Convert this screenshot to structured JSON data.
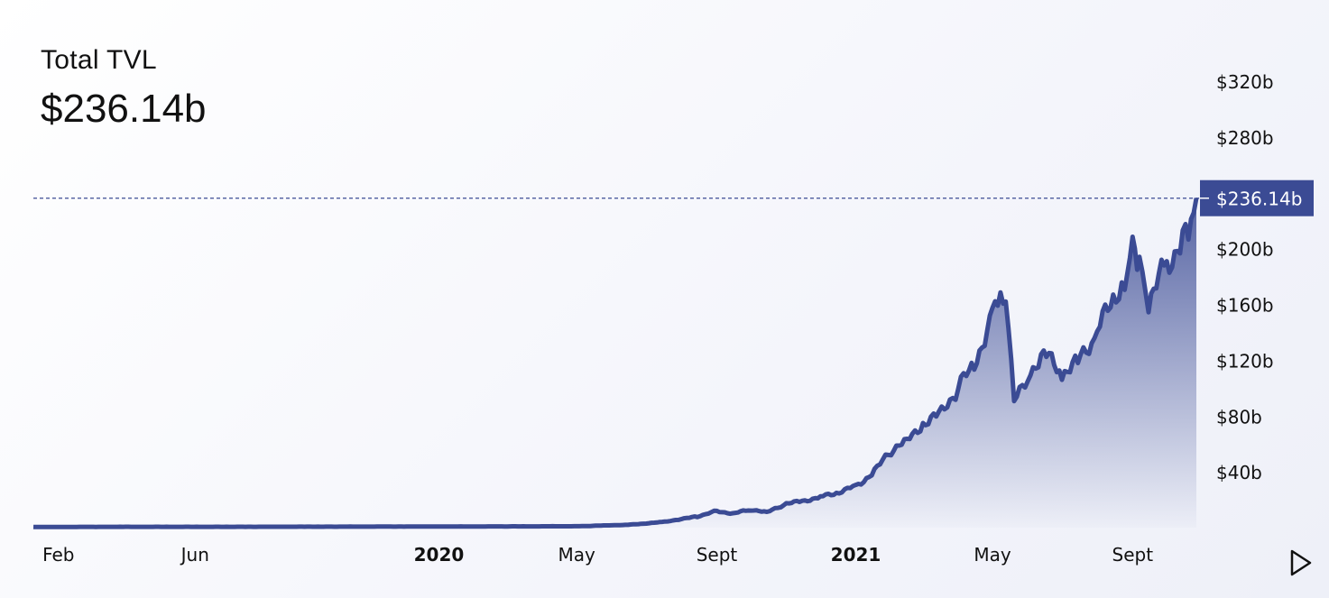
{
  "header": {
    "title": "Total TVL",
    "value": "$236.14b"
  },
  "chart_data": {
    "type": "area",
    "title": "Total TVL",
    "ylabel": "",
    "xlabel": "",
    "y_unit": "billion USD",
    "ylim": [
      0,
      320
    ],
    "y_ticks": [
      "$320b",
      "$280b",
      "$236.14b",
      "$200b",
      "$160b",
      "$120b",
      "$80b",
      "$40b"
    ],
    "y_tick_values": [
      320,
      280,
      200,
      160,
      120,
      80,
      40
    ],
    "x_ticks": [
      {
        "label": "Feb",
        "date": "2019-02-01",
        "bold": false
      },
      {
        "label": "Jun",
        "date": "2019-06-01",
        "bold": false
      },
      {
        "label": "2020",
        "date": "2020-01-01",
        "bold": true
      },
      {
        "label": "May",
        "date": "2020-05-01",
        "bold": false
      },
      {
        "label": "Sept",
        "date": "2020-09-01",
        "bold": false
      },
      {
        "label": "2021",
        "date": "2021-01-01",
        "bold": true
      },
      {
        "label": "May",
        "date": "2021-05-01",
        "bold": false
      },
      {
        "label": "Sept",
        "date": "2021-09-01",
        "bold": false
      }
    ],
    "current_value": 236.14,
    "current_label": "$236.14b",
    "line_color": "#3b4b94",
    "x_dates": [
      "2019-01-10",
      "2019-04-01",
      "2019-07-01",
      "2019-10-01",
      "2020-01-01",
      "2020-03-01",
      "2020-05-01",
      "2020-06-15",
      "2020-07-15",
      "2020-08-15",
      "2020-09-01",
      "2020-09-15",
      "2020-10-01",
      "2020-10-15",
      "2020-11-01",
      "2020-11-15",
      "2020-12-01",
      "2020-12-15",
      "2021-01-01",
      "2021-01-15",
      "2021-02-01",
      "2021-02-15",
      "2021-03-01",
      "2021-03-15",
      "2021-04-01",
      "2021-04-15",
      "2021-05-01",
      "2021-05-08",
      "2021-05-15",
      "2021-05-20",
      "2021-06-01",
      "2021-06-15",
      "2021-07-01",
      "2021-07-15",
      "2021-08-01",
      "2021-08-15",
      "2021-08-25",
      "2021-09-01",
      "2021-09-07",
      "2021-09-15",
      "2021-10-01",
      "2021-10-15",
      "2021-10-20",
      "2021-10-27"
    ],
    "values": [
      0.5,
      0.6,
      0.6,
      0.7,
      0.8,
      0.9,
      1,
      2,
      4,
      8,
      12,
      10,
      13,
      11,
      17,
      19,
      22,
      25,
      30,
      38,
      55,
      62,
      75,
      80,
      100,
      118,
      150,
      168,
      150,
      90,
      110,
      125,
      110,
      118,
      140,
      165,
      180,
      200,
      188,
      160,
      190,
      205,
      215,
      236.14
    ]
  },
  "controls": {
    "play_icon": "play-icon"
  }
}
